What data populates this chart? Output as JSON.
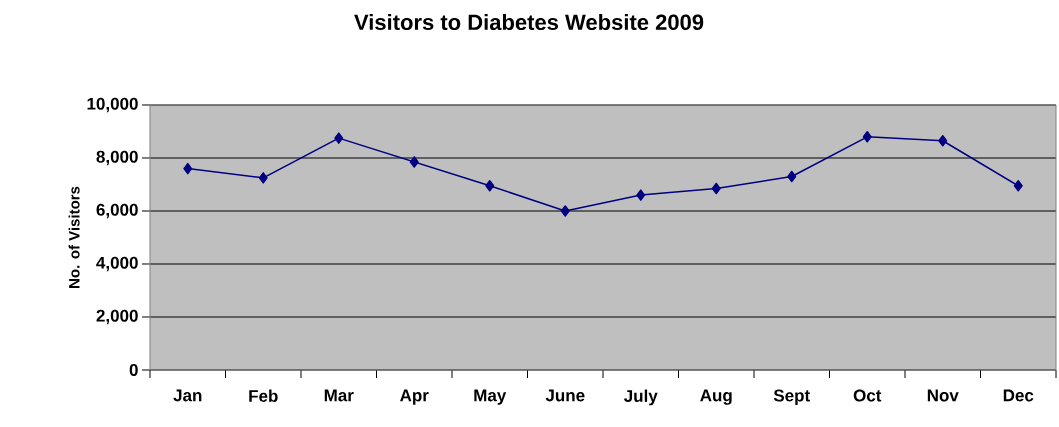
{
  "chart_data": {
    "type": "line",
    "title": "Visitors to Diabetes Website 2009",
    "ylabel": "No. of Visitors",
    "categories": [
      "Jan",
      "Feb",
      "Mar",
      "Apr",
      "May",
      "June",
      "July",
      "Aug",
      "Sept",
      "Oct",
      "Nov",
      "Dec"
    ],
    "series": [
      {
        "color": "#000080",
        "values": [
          7600,
          7250,
          8750,
          7850,
          6950,
          6000,
          6600,
          6850,
          7300,
          8800,
          8650,
          6950
        ]
      }
    ],
    "ylim": [
      0,
      10000
    ],
    "yticks": [
      {
        "value": 0,
        "label": "0"
      },
      {
        "value": 2000,
        "label": "2,000"
      },
      {
        "value": 4000,
        "label": "4,000"
      },
      {
        "value": 6000,
        "label": "6,000"
      },
      {
        "value": 8000,
        "label": "8,000"
      },
      {
        "value": 10000,
        "label": "10,000"
      }
    ],
    "grid": "y",
    "marker": "diamond",
    "line_style": "solid"
  }
}
